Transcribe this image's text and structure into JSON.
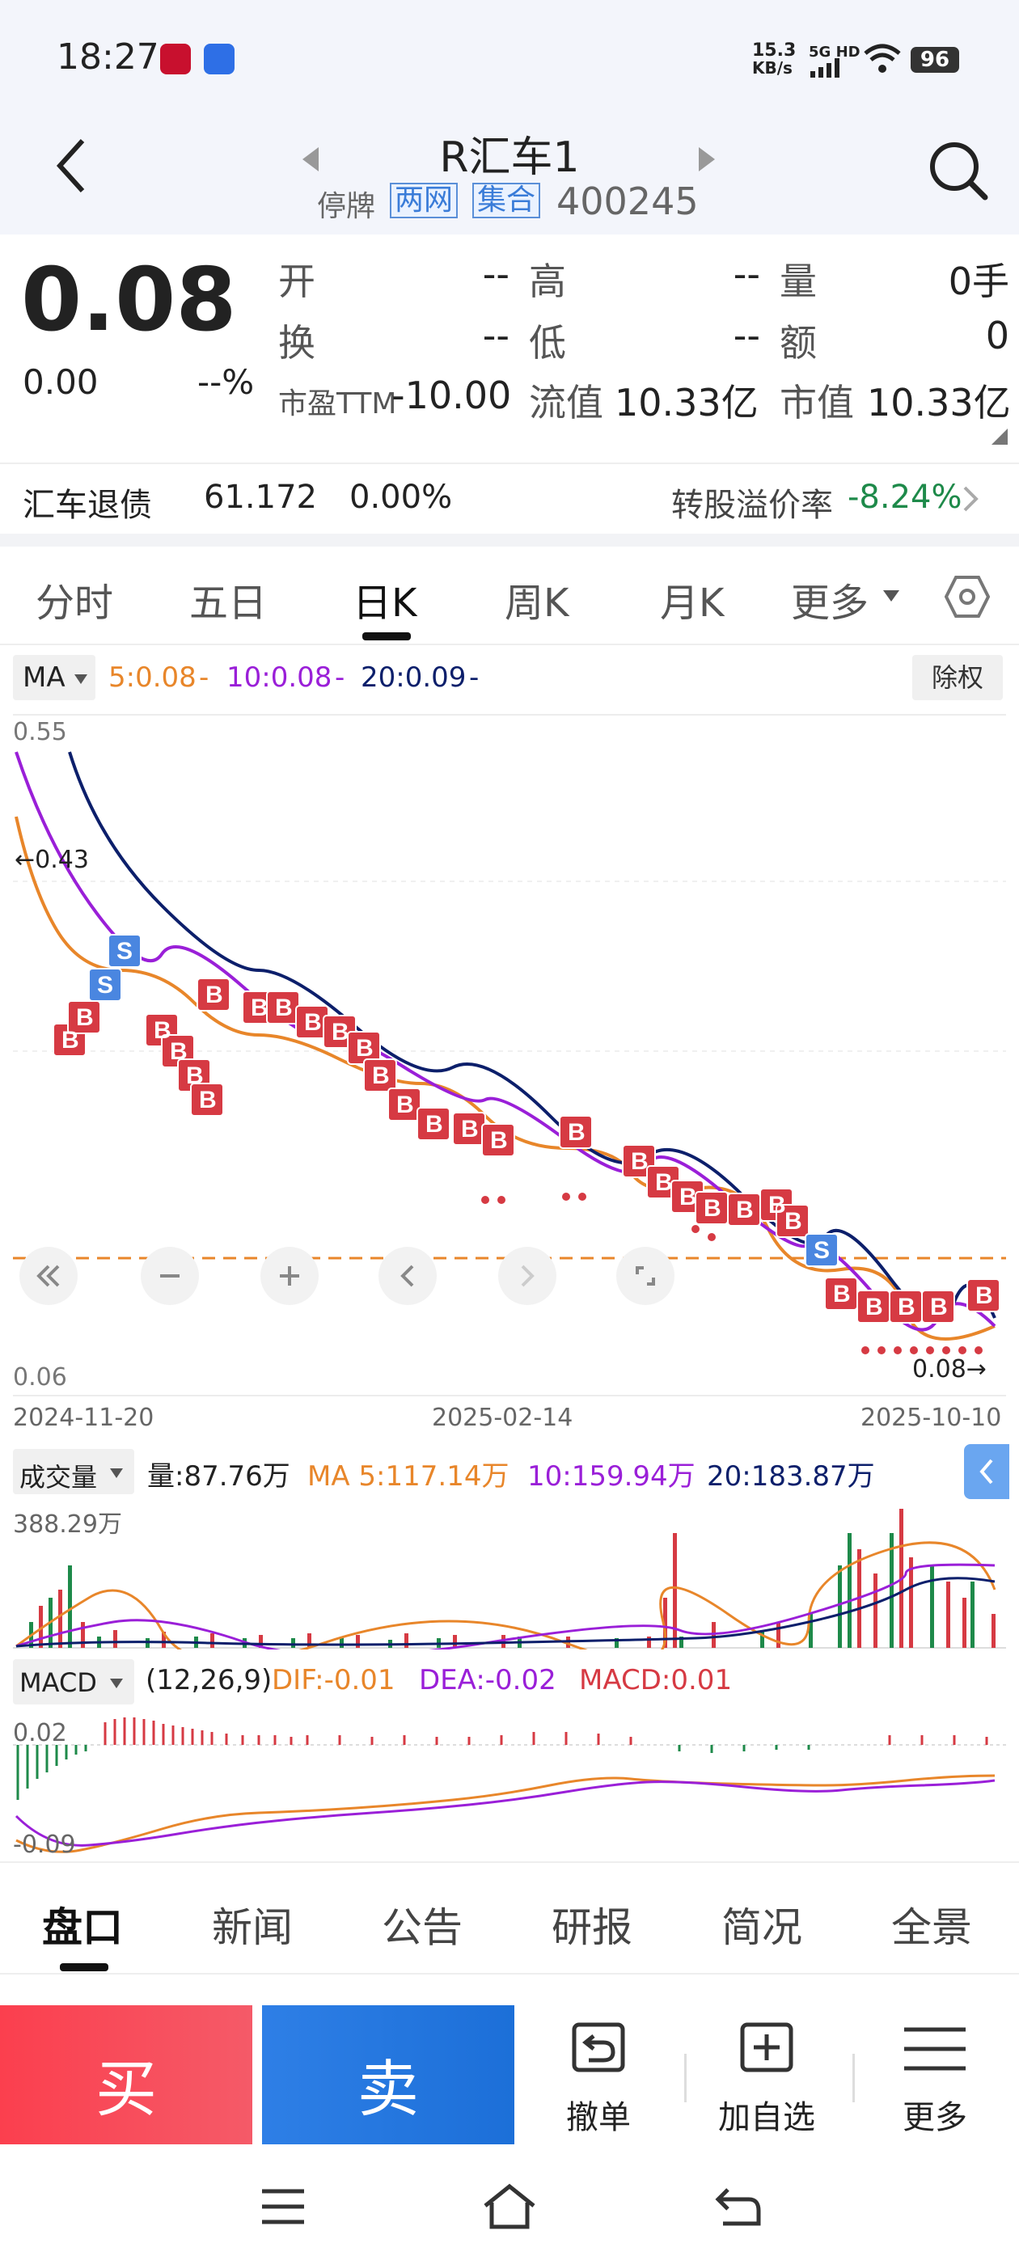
{
  "status_bar": {
    "time": "18:27",
    "net_speed_top": "15.3",
    "net_speed_bottom": "KB/s",
    "network": "5G HD",
    "battery": "96"
  },
  "header": {
    "title": "R汇车1",
    "suspended": "停牌",
    "tag1": "两网",
    "tag2": "集合",
    "code": "400245"
  },
  "quote": {
    "price": "0.08",
    "change": "0.00",
    "change_pct": "--%",
    "items": [
      {
        "label": "开",
        "value": "--"
      },
      {
        "label": "高",
        "value": "--"
      },
      {
        "label": "量",
        "value": "0手"
      },
      {
        "label": "换",
        "value": "--"
      },
      {
        "label": "低",
        "value": "--"
      },
      {
        "label": "额",
        "value": "0"
      },
      {
        "label": "市盈TTM",
        "value": "-10.00"
      },
      {
        "label": "流值",
        "value": "10.33亿"
      },
      {
        "label": "市值",
        "value": "10.33亿"
      }
    ]
  },
  "bond": {
    "name": "汇车退债",
    "price": "61.172",
    "pct": "0.00%",
    "premium_label": "转股溢价率",
    "premium_value": "-8.24%"
  },
  "period_tabs": [
    "分时",
    "五日",
    "日K",
    "周K",
    "月K",
    "更多"
  ],
  "selected_period": "日K",
  "ma_legend": {
    "selector": "MA",
    "ma5": "5:0.08",
    "ma10": "10:0.08",
    "ma20": "20:0.09",
    "adjust": "除权"
  },
  "colors": {
    "up": "#e0313c",
    "down": "#1e8a4a",
    "ma5": "#e8862a",
    "ma10": "#9a1fd8",
    "ma20": "#0c1f6b",
    "accent": "#2e7fe6"
  },
  "kline_axis": {
    "top": "0.55",
    "bottom": "0.06",
    "high_marker": "←0.43",
    "last_marker": "0.08→",
    "dates": [
      "2024-11-20",
      "2025-02-14",
      "2025-10-10"
    ]
  },
  "volume_legend": {
    "selector": "成交量",
    "vol": "量:87.76万",
    "ma5": "MA 5:117.14万",
    "ma10": "10:159.94万",
    "ma20": "20:183.87万",
    "scale": "388.29万"
  },
  "macd_legend": {
    "selector": "MACD",
    "params": "(12,26,9)",
    "dif": "DIF:-0.01",
    "dea": "DEA:-0.02",
    "macd": "MACD:0.01",
    "top": "0.02",
    "bottom": "-0.09"
  },
  "bottom_tabs": [
    "盘口",
    "新闻",
    "公告",
    "研报",
    "简况",
    "全景"
  ],
  "selected_bottom_tab": "盘口",
  "actions": {
    "buy": "买",
    "sell": "卖",
    "cancel": "撤单",
    "add": "加自选",
    "more": "更多"
  }
}
